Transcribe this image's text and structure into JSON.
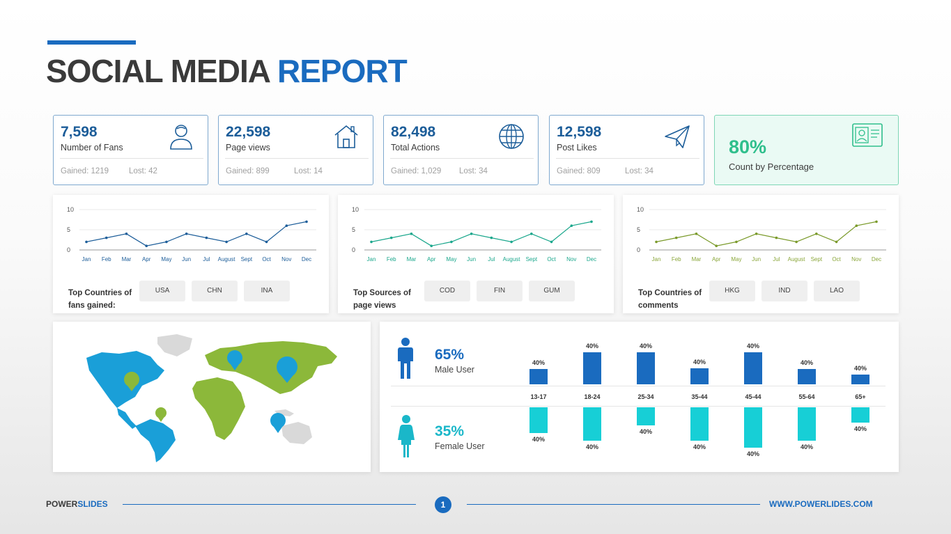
{
  "header": {
    "title_main": "SOCIAL MEDIA",
    "title_accent": "REPORT"
  },
  "cards": [
    {
      "value": "7,598",
      "label": "Number of Fans",
      "gained": "Gained: 1219",
      "lost": "Lost: 42",
      "icon": "user-icon"
    },
    {
      "value": "22,598",
      "label": "Page views",
      "gained": "Gained: 899",
      "lost": "Lost: 14",
      "icon": "house-icon"
    },
    {
      "value": "82,498",
      "label": "Total Actions",
      "gained": "Gained: 1,029",
      "lost": "Lost: 34",
      "icon": "globe-icon"
    },
    {
      "value": "12,598",
      "label": "Post Likes",
      "gained": "Gained: 809",
      "lost": "Lost: 34",
      "icon": "paper-plane-icon"
    }
  ],
  "percent_card": {
    "value": "80%",
    "label": "Count by Percentage",
    "icon": "id-card-icon"
  },
  "trend_panels": [
    {
      "caption": "Top Countries of fans gained:",
      "pills": [
        "USA",
        "CHN",
        "INA"
      ],
      "line_color": "#1c5d99",
      "tick_color": "#1c5d99"
    },
    {
      "caption": "Top Sources of page views",
      "pills": [
        "COD",
        "FIN",
        "GUM"
      ],
      "line_color": "#1aa78c",
      "tick_color": "#1aa78c"
    },
    {
      "caption": "Top Countries of comments",
      "pills": [
        "HKG",
        "IND",
        "LAO"
      ],
      "line_color": "#7a9a2a",
      "tick_color": "#8aa63a"
    }
  ],
  "chart_data": [
    {
      "type": "line",
      "x": [
        "Jan",
        "Feb",
        "Mar",
        "Apr",
        "May",
        "Jun",
        "Jul",
        "August",
        "Sept",
        "Oct",
        "Nov",
        "Dec"
      ],
      "series": [
        {
          "values": [
            2,
            3,
            4,
            1,
            2,
            4,
            3,
            2,
            4,
            2,
            6,
            7
          ]
        }
      ],
      "ylim": [
        0,
        10
      ],
      "yticks": [
        "0",
        "5",
        "10"
      ]
    },
    {
      "type": "line",
      "x": [
        "Jan",
        "Feb",
        "Mar",
        "Apr",
        "May",
        "Jun",
        "Jul",
        "August",
        "Sept",
        "Oct",
        "Nov",
        "Dec"
      ],
      "series": [
        {
          "values": [
            2,
            3,
            4,
            1,
            2,
            4,
            3,
            2,
            4,
            2,
            6,
            7
          ]
        }
      ],
      "ylim": [
        0,
        10
      ],
      "yticks": [
        "0",
        "5",
        "10"
      ]
    },
    {
      "type": "line",
      "x": [
        "Jan",
        "Feb",
        "Mar",
        "Apr",
        "May",
        "Jun",
        "Jul",
        "August",
        "Sept",
        "Oct",
        "Nov",
        "Dec"
      ],
      "series": [
        {
          "values": [
            2,
            3,
            4,
            1,
            2,
            4,
            3,
            2,
            4,
            2,
            6,
            7
          ]
        }
      ],
      "ylim": [
        0,
        10
      ],
      "yticks": [
        "0",
        "5",
        "10"
      ]
    },
    {
      "type": "bar",
      "categories": [
        "13-17",
        "18-24",
        "25-34",
        "35-44",
        "45-44",
        "55-64",
        "65+"
      ],
      "series": [
        {
          "name": "Male User",
          "values": [
            0.45,
            0.95,
            0.95,
            0.48,
            0.95,
            0.45,
            0.3
          ],
          "labels": [
            "40%",
            "40%",
            "40%",
            "40%",
            "40%",
            "40%",
            "40%"
          ]
        },
        {
          "name": "Female User",
          "values": [
            0.78,
            1.0,
            0.55,
            1.0,
            1.2,
            1.0,
            0.45
          ],
          "labels": [
            "40%",
            "40%",
            "40%",
            "40%",
            "40%",
            "40%",
            "40%"
          ]
        }
      ]
    }
  ],
  "demographics": {
    "male": {
      "percent": "65%",
      "label": "Male User",
      "icon": "male-icon"
    },
    "female": {
      "percent": "35%",
      "label": "Female User",
      "icon": "female-icon"
    }
  },
  "map": {
    "icon": "world-map",
    "land_color": "#d9d9d9",
    "americas_color": "#1a9fd8",
    "eurasia_color": "#8cb83a",
    "pin_blue": "#1a9fd8",
    "pin_green": "#8cb83a"
  },
  "footer": {
    "brand_main": "POWER",
    "brand_accent": "SLIDES",
    "page": "1",
    "url": "WWW.POWERLIDES.COM"
  }
}
